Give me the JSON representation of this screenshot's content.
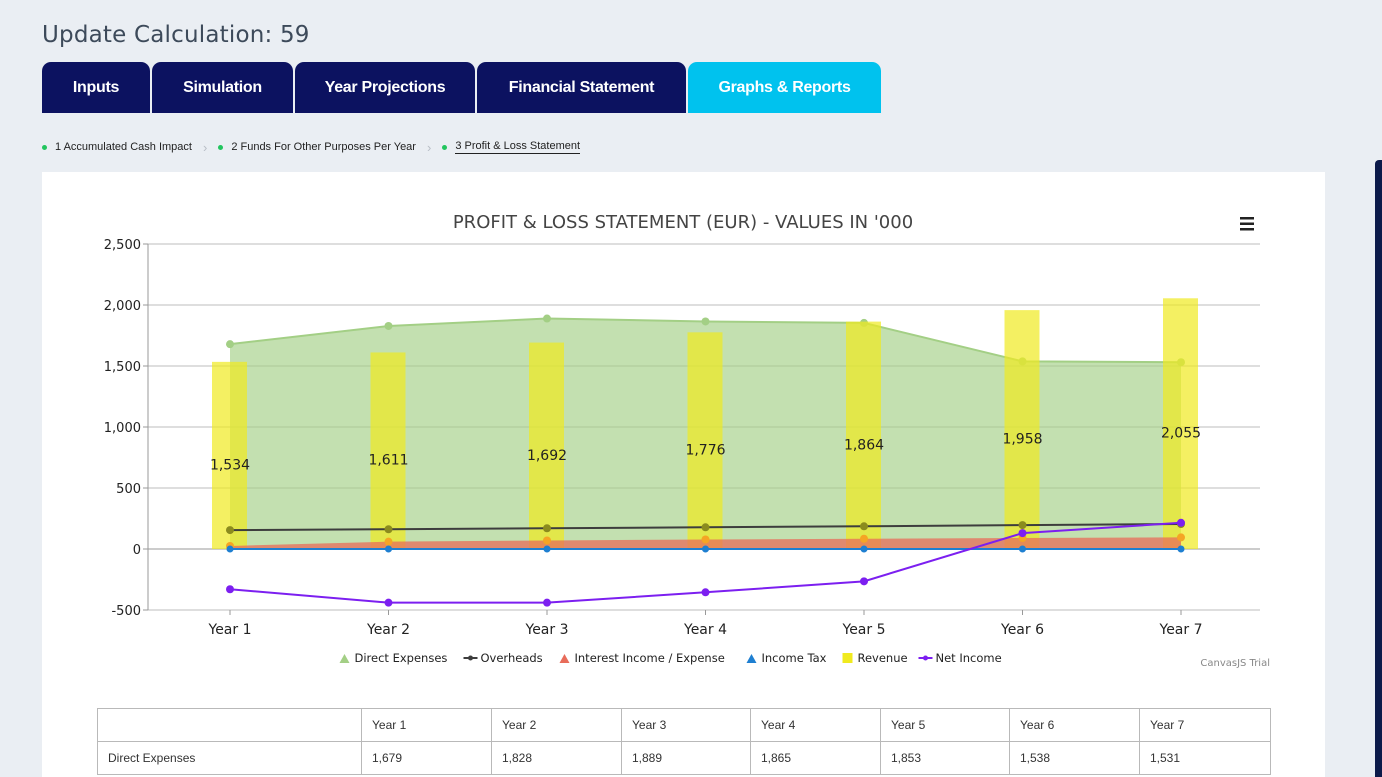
{
  "page": {
    "title": "Update Calculation: 59"
  },
  "tabs": [
    {
      "label": "Inputs"
    },
    {
      "label": "Simulation"
    },
    {
      "label": "Year Projections"
    },
    {
      "label": "Financial Statement"
    },
    {
      "label": "Graphs & Reports"
    }
  ],
  "active_tab": "Graphs & Reports",
  "breadcrumbs": [
    {
      "label": "1 Accumulated Cash Impact"
    },
    {
      "label": "2 Funds For Other Purposes Per Year"
    },
    {
      "label": "3 Profit & Loss Statement"
    }
  ],
  "active_breadcrumb": "3 Profit & Loss Statement",
  "chart_menu_icon": "hamburger-menu-icon",
  "watermark": "CanvasJS Trial",
  "colors": {
    "tab_bg": "#0c1260",
    "tab_active_bg": "#00c2ee",
    "direct_expenses": "#a3cf85",
    "overheads": "#3d3d3d",
    "interest": "#e86c5a",
    "income_tax": "#1e7fd1",
    "revenue": "#f0ea1f",
    "net_income": "#7c1ff0"
  },
  "chart_data": {
    "type": "area",
    "title": "PROFIT & LOSS STATEMENT (EUR) - VALUES IN '000",
    "categories": [
      "Year 1",
      "Year 2",
      "Year 3",
      "Year 4",
      "Year 5",
      "Year 6",
      "Year 7"
    ],
    "ylim": [
      -500,
      2500
    ],
    "yticks": [
      -500,
      0,
      500,
      1000,
      1500,
      2000,
      2500
    ],
    "ytick_labels": [
      "-500",
      "0",
      "500",
      "1,000",
      "1,500",
      "2,000",
      "2,500"
    ],
    "grid": true,
    "legend_position": "bottom",
    "series": [
      {
        "name": "Direct Expenses",
        "type": "area",
        "values": [
          1679,
          1828,
          1889,
          1865,
          1853,
          1538,
          1531
        ]
      },
      {
        "name": "Overheads",
        "type": "line",
        "values": [
          155,
          162,
          170,
          178,
          186,
          196,
          205
        ]
      },
      {
        "name": "Interest Income / Expense",
        "type": "area",
        "values": [
          25,
          60,
          70,
          78,
          84,
          90,
          95
        ]
      },
      {
        "name": "Income Tax",
        "type": "line",
        "values": [
          0,
          0,
          0,
          0,
          0,
          0,
          0
        ]
      },
      {
        "name": "Revenue",
        "type": "bar",
        "values": [
          1534,
          1611,
          1692,
          1776,
          1864,
          1958,
          2055
        ],
        "value_labels": [
          "1,534",
          "1,611",
          "1,692",
          "1,776",
          "1,864",
          "1,958",
          "2,055"
        ]
      },
      {
        "name": "Net Income",
        "type": "line",
        "values": [
          -330,
          -440,
          -440,
          -355,
          -265,
          130,
          215
        ]
      }
    ]
  },
  "table": {
    "header": [
      "",
      "Year 1",
      "Year 2",
      "Year 3",
      "Year 4",
      "Year 5",
      "Year 6",
      "Year 7"
    ],
    "rows": [
      [
        "Direct Expenses",
        "1,679",
        "1,828",
        "1,889",
        "1,865",
        "1,853",
        "1,538",
        "1,531"
      ]
    ]
  }
}
